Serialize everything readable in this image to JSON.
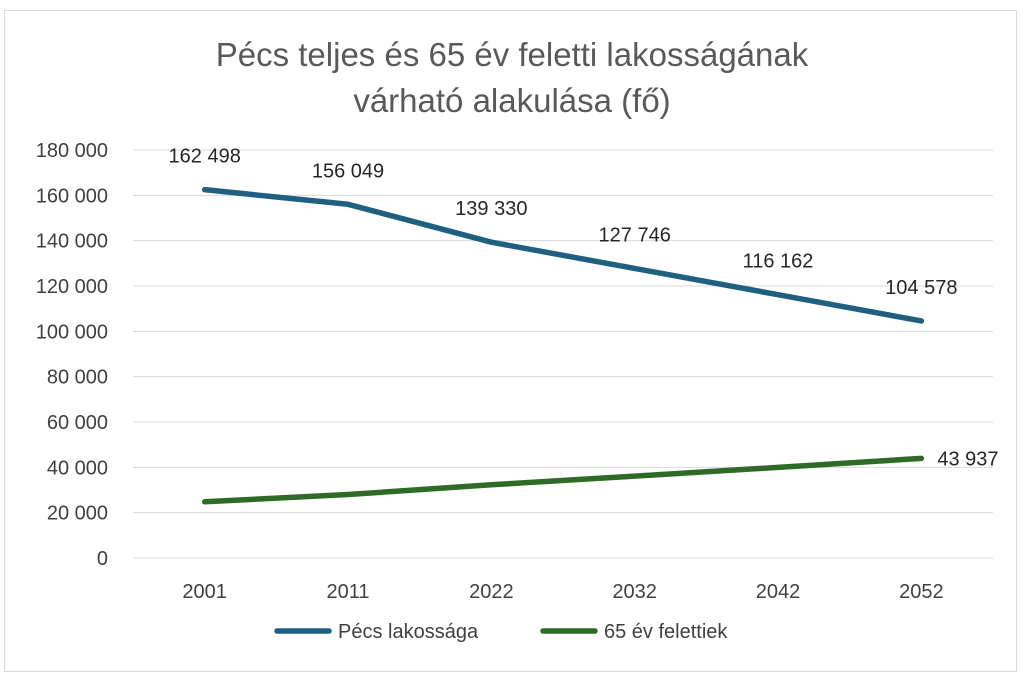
{
  "chart_data": {
    "type": "line",
    "title_lines": [
      "Pécs teljes és 65 év feletti lakosságának",
      "várható alakulása (fő)"
    ],
    "categories": [
      "2001",
      "2011",
      "2022",
      "2032",
      "2042",
      "2052"
    ],
    "ylim": [
      0,
      180000
    ],
    "y_ticks": [
      0,
      20000,
      40000,
      60000,
      80000,
      100000,
      120000,
      140000,
      160000,
      180000
    ],
    "y_tick_labels": [
      "0",
      "20 000",
      "40 000",
      "60 000",
      "80 000",
      "100 000",
      "120 000",
      "140 000",
      "160 000",
      "180 000"
    ],
    "grid": true,
    "legend_position": "bottom",
    "series": [
      {
        "name": "Pécs lakossága",
        "color": "#1f5f80",
        "values": [
          162498,
          156049,
          139330,
          127746,
          116162,
          104578
        ],
        "data_labels": [
          "162 498",
          "156 049",
          "139 330",
          "127 746",
          "116 162",
          "104 578"
        ]
      },
      {
        "name": "65 év felettiek",
        "color": "#2e6b26",
        "values": [
          24800,
          28000,
          32300,
          36100,
          40000,
          43937
        ],
        "data_labels": [
          "",
          "",
          "",
          "",
          "",
          "43 937"
        ]
      }
    ]
  }
}
